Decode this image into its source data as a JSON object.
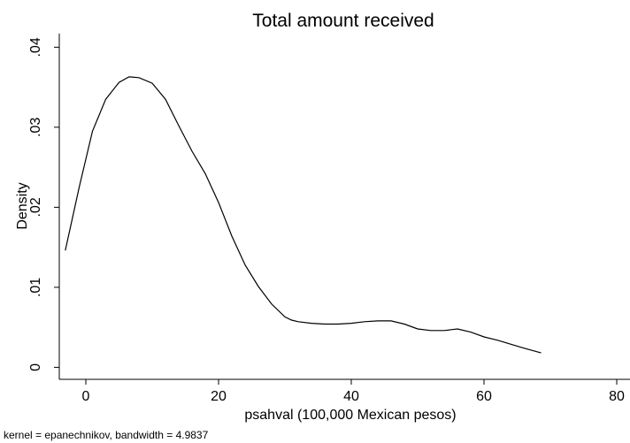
{
  "chart_data": {
    "type": "line",
    "title": "Total amount received",
    "xlabel": "psahval (100,000 Mexican pesos)",
    "ylabel": "Density",
    "note": "kernel = epanechnikov, bandwidth = 4.9837",
    "xlim": [
      -4,
      82
    ],
    "ylim": [
      -0.0015,
      0.0417
    ],
    "x_ticks": [
      0,
      20,
      40,
      60,
      80
    ],
    "x_tick_labels": [
      "0",
      "20",
      "40",
      "60",
      "80"
    ],
    "y_ticks": [
      0,
      0.01,
      0.02,
      0.03,
      0.04
    ],
    "y_tick_labels": [
      "0",
      ".01",
      ".02",
      ".03",
      ".04"
    ],
    "grid": false,
    "series": [
      {
        "x": [
          -3.1,
          -1,
          1,
          3,
          5,
          6.5,
          8,
          10,
          12,
          14,
          16,
          18,
          20,
          22,
          24,
          26,
          28,
          30,
          31,
          32,
          34,
          36,
          38,
          40,
          42,
          44,
          46,
          48,
          50,
          52,
          54,
          56,
          58,
          60,
          62,
          64,
          66,
          68.6
        ],
        "y": [
          0.0146,
          0.0225,
          0.0295,
          0.0335,
          0.0356,
          0.0363,
          0.0362,
          0.0355,
          0.0335,
          0.0302,
          0.027,
          0.0242,
          0.0206,
          0.0164,
          0.0128,
          0.0101,
          0.0079,
          0.0063,
          0.0059,
          0.0057,
          0.0055,
          0.0054,
          0.0054,
          0.0055,
          0.0057,
          0.0058,
          0.0058,
          0.0054,
          0.0048,
          0.0046,
          0.0046,
          0.0048,
          0.0044,
          0.0038,
          0.0034,
          0.0029,
          0.0024,
          0.0018
        ],
        "color": "#000000"
      }
    ]
  }
}
